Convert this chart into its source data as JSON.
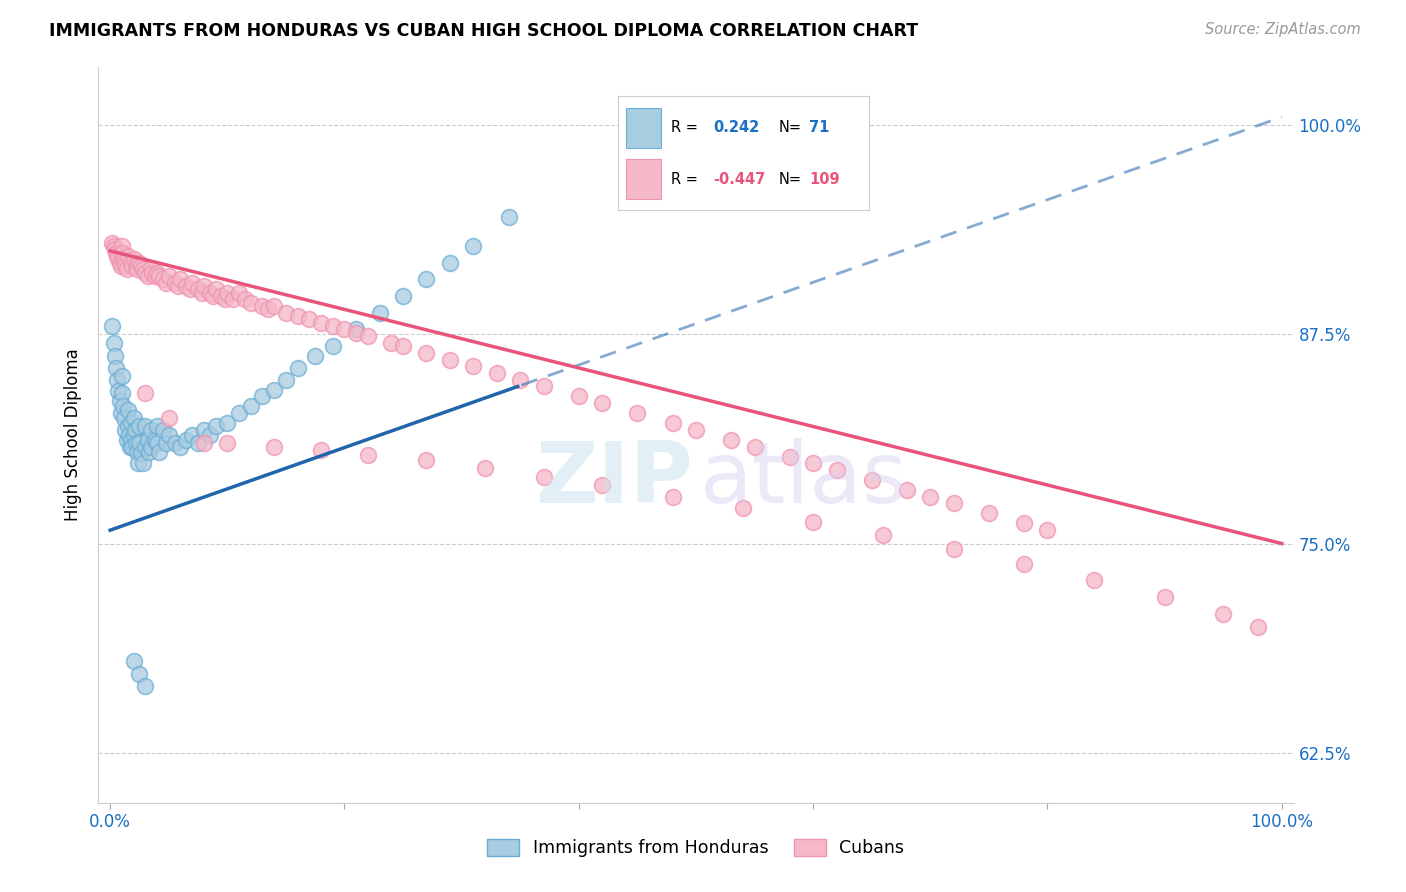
{
  "title": "IMMIGRANTS FROM HONDURAS VS CUBAN HIGH SCHOOL DIPLOMA CORRELATION CHART",
  "source": "Source: ZipAtlas.com",
  "ylabel": "High School Diploma",
  "blue_R": 0.242,
  "blue_N": 71,
  "pink_R": -0.447,
  "pink_N": 109,
  "blue_label": "Immigrants from Honduras",
  "pink_label": "Cubans",
  "blue_color": "#a8cce0",
  "pink_color": "#f4b8c8",
  "blue_edge_color": "#6aaed6",
  "pink_edge_color": "#f093b0",
  "blue_line_color": "#2166ac",
  "pink_line_color": "#e8547a",
  "legend_R_color": "#000000",
  "legend_val_blue": "#1a6fc4",
  "legend_val_pink": "#e8547a",
  "y_tick_vals": [
    0.625,
    0.75,
    0.875,
    1.0
  ],
  "y_tick_labels": [
    "62.5%",
    "75.0%",
    "87.5%",
    "100.0%"
  ],
  "xlim": [
    -0.01,
    1.01
  ],
  "ylim": [
    0.595,
    1.035
  ],
  "blue_x": [
    0.002,
    0.003,
    0.004,
    0.005,
    0.006,
    0.007,
    0.008,
    0.009,
    0.01,
    0.01,
    0.011,
    0.012,
    0.013,
    0.014,
    0.015,
    0.015,
    0.016,
    0.017,
    0.018,
    0.018,
    0.019,
    0.02,
    0.02,
    0.021,
    0.022,
    0.023,
    0.024,
    0.025,
    0.025,
    0.026,
    0.028,
    0.03,
    0.03,
    0.032,
    0.033,
    0.035,
    0.035,
    0.038,
    0.04,
    0.04,
    0.042,
    0.045,
    0.048,
    0.05,
    0.055,
    0.06,
    0.065,
    0.07,
    0.075,
    0.08,
    0.085,
    0.09,
    0.1,
    0.11,
    0.12,
    0.13,
    0.14,
    0.15,
    0.16,
    0.175,
    0.19,
    0.21,
    0.23,
    0.25,
    0.27,
    0.29,
    0.31,
    0.34,
    0.02,
    0.025,
    0.03
  ],
  "blue_y": [
    0.88,
    0.87,
    0.862,
    0.855,
    0.848,
    0.841,
    0.835,
    0.828,
    0.85,
    0.84,
    0.832,
    0.825,
    0.818,
    0.812,
    0.83,
    0.82,
    0.815,
    0.808,
    0.822,
    0.812,
    0.808,
    0.825,
    0.815,
    0.818,
    0.81,
    0.805,
    0.798,
    0.82,
    0.81,
    0.804,
    0.798,
    0.82,
    0.808,
    0.812,
    0.805,
    0.818,
    0.808,
    0.812,
    0.82,
    0.81,
    0.805,
    0.818,
    0.81,
    0.815,
    0.81,
    0.808,
    0.812,
    0.815,
    0.81,
    0.818,
    0.815,
    0.82,
    0.822,
    0.828,
    0.832,
    0.838,
    0.842,
    0.848,
    0.855,
    0.862,
    0.868,
    0.878,
    0.888,
    0.898,
    0.908,
    0.918,
    0.928,
    0.945,
    0.68,
    0.672,
    0.665
  ],
  "pink_x": [
    0.002,
    0.003,
    0.004,
    0.005,
    0.006,
    0.007,
    0.008,
    0.009,
    0.01,
    0.01,
    0.011,
    0.012,
    0.013,
    0.014,
    0.015,
    0.018,
    0.019,
    0.02,
    0.022,
    0.023,
    0.025,
    0.026,
    0.028,
    0.03,
    0.032,
    0.035,
    0.036,
    0.038,
    0.04,
    0.042,
    0.045,
    0.048,
    0.05,
    0.055,
    0.058,
    0.06,
    0.065,
    0.068,
    0.07,
    0.075,
    0.078,
    0.08,
    0.085,
    0.088,
    0.09,
    0.095,
    0.098,
    0.1,
    0.105,
    0.11,
    0.115,
    0.12,
    0.13,
    0.135,
    0.14,
    0.15,
    0.16,
    0.17,
    0.18,
    0.19,
    0.2,
    0.21,
    0.22,
    0.24,
    0.25,
    0.27,
    0.29,
    0.31,
    0.33,
    0.35,
    0.37,
    0.4,
    0.42,
    0.45,
    0.48,
    0.5,
    0.53,
    0.55,
    0.58,
    0.6,
    0.62,
    0.65,
    0.68,
    0.7,
    0.72,
    0.75,
    0.78,
    0.8,
    0.03,
    0.05,
    0.08,
    0.1,
    0.14,
    0.18,
    0.22,
    0.27,
    0.32,
    0.37,
    0.42,
    0.48,
    0.54,
    0.6,
    0.66,
    0.72,
    0.78,
    0.84,
    0.9,
    0.95,
    0.98
  ],
  "pink_y": [
    0.93,
    0.928,
    0.926,
    0.924,
    0.922,
    0.92,
    0.918,
    0.916,
    0.928,
    0.924,
    0.92,
    0.918,
    0.916,
    0.914,
    0.922,
    0.918,
    0.916,
    0.92,
    0.916,
    0.914,
    0.918,
    0.916,
    0.914,
    0.912,
    0.91,
    0.915,
    0.912,
    0.91,
    0.912,
    0.91,
    0.908,
    0.906,
    0.91,
    0.906,
    0.904,
    0.908,
    0.904,
    0.902,
    0.906,
    0.902,
    0.9,
    0.904,
    0.9,
    0.898,
    0.902,
    0.898,
    0.896,
    0.9,
    0.896,
    0.9,
    0.896,
    0.894,
    0.892,
    0.89,
    0.892,
    0.888,
    0.886,
    0.884,
    0.882,
    0.88,
    0.878,
    0.876,
    0.874,
    0.87,
    0.868,
    0.864,
    0.86,
    0.856,
    0.852,
    0.848,
    0.844,
    0.838,
    0.834,
    0.828,
    0.822,
    0.818,
    0.812,
    0.808,
    0.802,
    0.798,
    0.794,
    0.788,
    0.782,
    0.778,
    0.774,
    0.768,
    0.762,
    0.758,
    0.84,
    0.825,
    0.81,
    0.81,
    0.808,
    0.806,
    0.803,
    0.8,
    0.795,
    0.79,
    0.785,
    0.778,
    0.771,
    0.763,
    0.755,
    0.747,
    0.738,
    0.728,
    0.718,
    0.708,
    0.7
  ]
}
